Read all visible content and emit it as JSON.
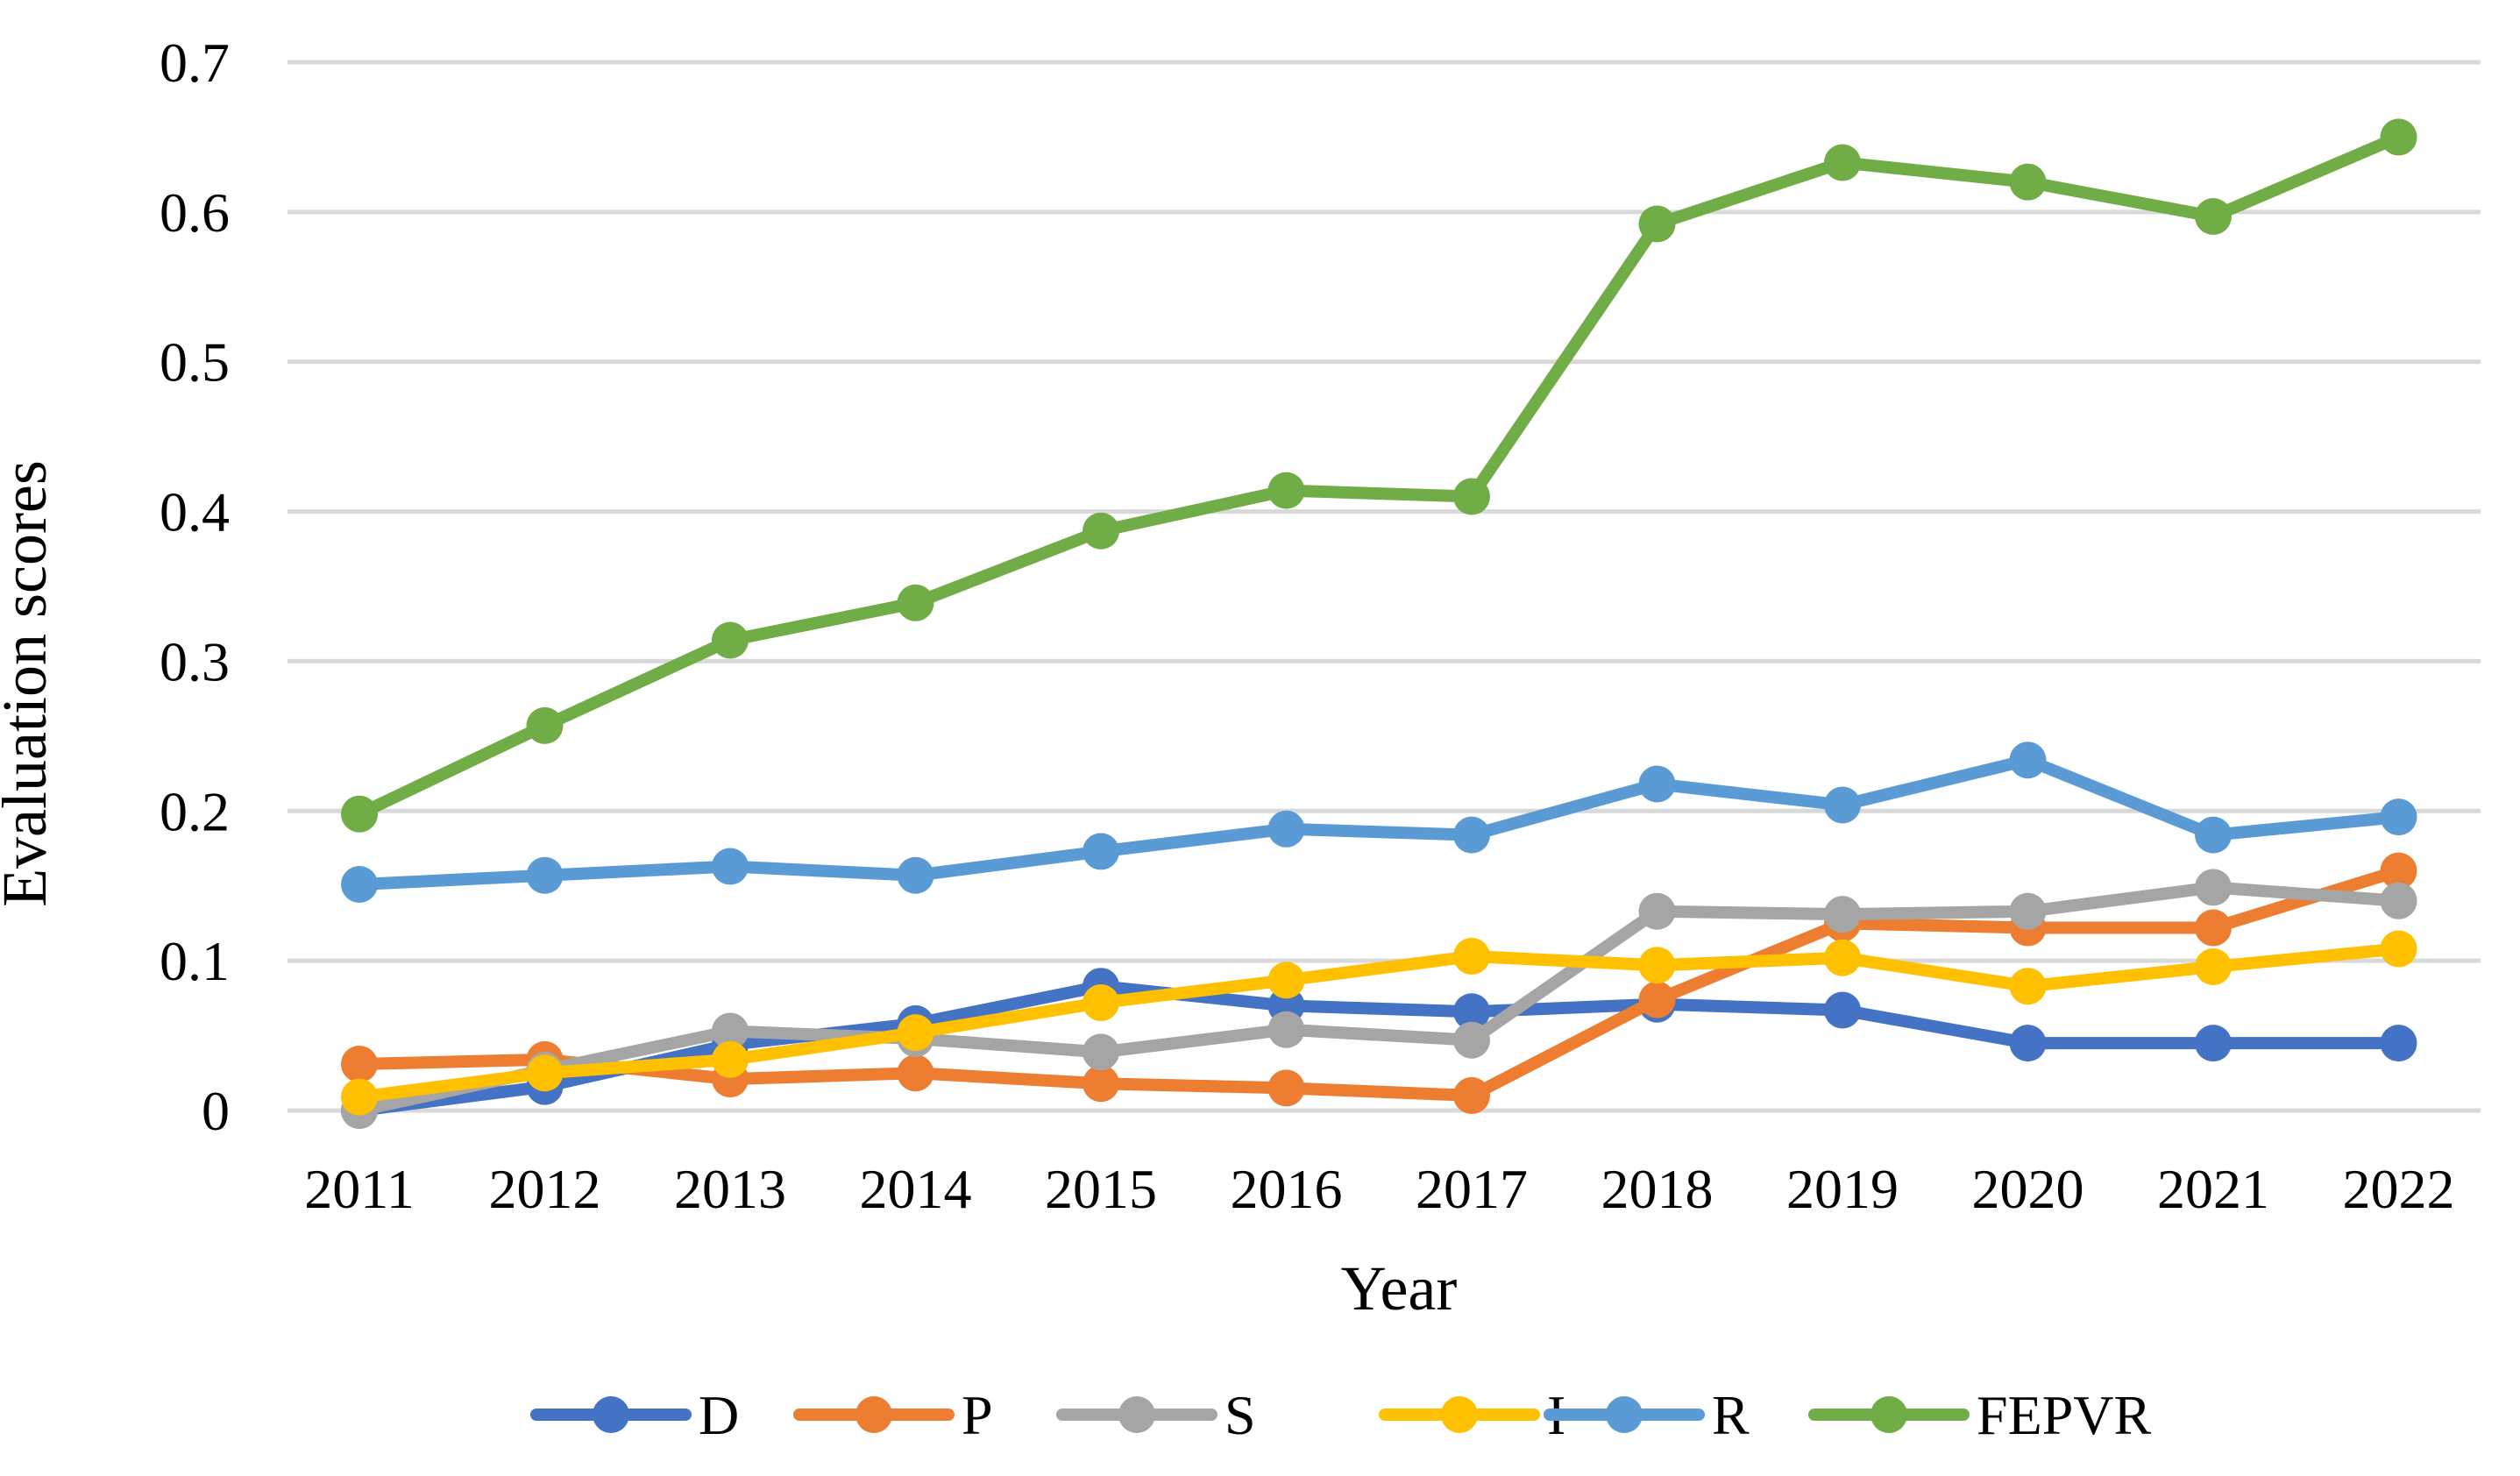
{
  "chart_data": {
    "type": "line",
    "title": "",
    "xlabel": "Year",
    "ylabel": "Evaluation scores",
    "ylim": [
      0,
      0.7
    ],
    "yticks": [
      0,
      0.1,
      0.2,
      0.3,
      0.4,
      0.5,
      0.6,
      0.7
    ],
    "ytick_labels": [
      "0",
      "0.1",
      "0.2",
      "0.3",
      "0.4",
      "0.5",
      "0.6",
      "0.7"
    ],
    "grid": "horizontal",
    "legend_position": "bottom",
    "categories": [
      "2011",
      "2012",
      "2013",
      "2014",
      "2015",
      "2016",
      "2017",
      "2018",
      "2019",
      "2020",
      "2021",
      "2022"
    ],
    "series": [
      {
        "name": "D",
        "color": "#4472C4",
        "values": [
          0.0,
          0.016,
          0.044,
          0.058,
          0.083,
          0.07,
          0.066,
          0.071,
          0.067,
          0.045,
          0.045,
          0.045
        ]
      },
      {
        "name": "P",
        "color": "#ED7D31",
        "values": [
          0.031,
          0.034,
          0.021,
          0.025,
          0.018,
          0.015,
          0.01,
          0.074,
          0.125,
          0.122,
          0.122,
          0.16
        ]
      },
      {
        "name": "S",
        "color": "#A5A5A5",
        "values": [
          0.0,
          0.027,
          0.053,
          0.048,
          0.039,
          0.054,
          0.047,
          0.133,
          0.131,
          0.133,
          0.149,
          0.14
        ]
      },
      {
        "name": "I",
        "color": "#FFC000",
        "values": [
          0.009,
          0.025,
          0.034,
          0.052,
          0.072,
          0.087,
          0.103,
          0.097,
          0.102,
          0.083,
          0.096,
          0.108
        ]
      },
      {
        "name": "R",
        "color": "#5B9BD5",
        "values": [
          0.151,
          0.157,
          0.163,
          0.157,
          0.173,
          0.188,
          0.184,
          0.218,
          0.204,
          0.234,
          0.184,
          0.196
        ]
      },
      {
        "name": "FEPVR",
        "color": "#70AD47",
        "values": [
          0.198,
          0.257,
          0.314,
          0.339,
          0.387,
          0.414,
          0.41,
          0.592,
          0.633,
          0.62,
          0.597,
          0.65
        ]
      }
    ]
  }
}
